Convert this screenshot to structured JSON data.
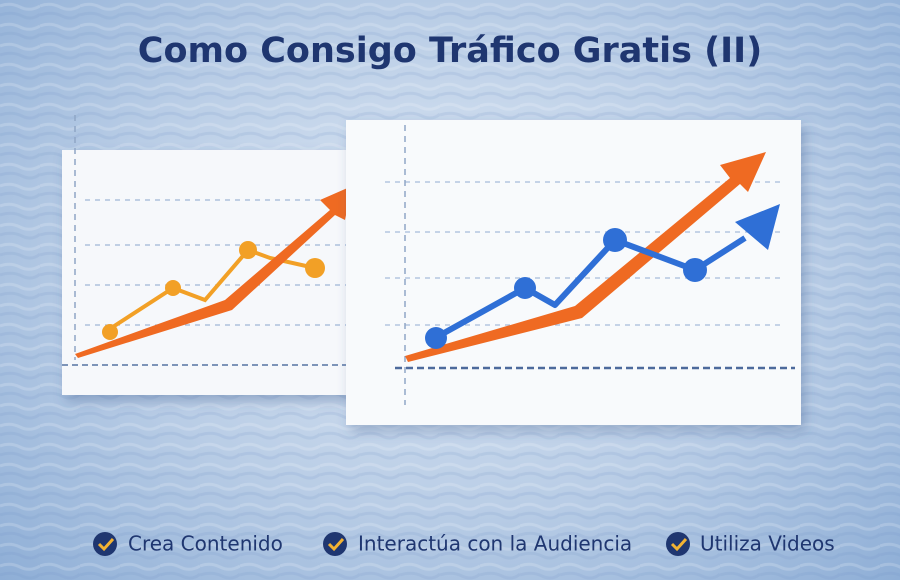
{
  "header": {
    "title": "Como Consigo Tráfico Gratis (II)"
  },
  "items": [
    "Crea Contenido",
    "Interactúa con la Audiencia",
    "Utiliza Videos"
  ]
}
